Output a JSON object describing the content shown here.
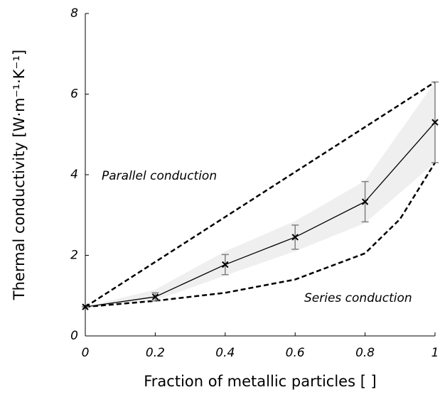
{
  "chart_data": {
    "type": "line",
    "xlabel": "Fraction of metallic particles [ ]",
    "ylabel": "Thermal conductivity [W·m⁻¹·K⁻¹]",
    "xlim": [
      0,
      1
    ],
    "ylim": [
      0,
      8
    ],
    "xticks": [
      0,
      0.2,
      0.4,
      0.6,
      0.8,
      1
    ],
    "yticks": [
      0,
      2,
      4,
      6,
      8
    ],
    "annotations": [
      "Parallel conduction",
      "Series conduction"
    ],
    "band_color": "#efefef",
    "errorbar_color": "#808080",
    "series": [
      {
        "x": [
          0,
          0.2,
          0.4,
          0.6,
          0.8,
          1
        ],
        "values": [
          0.72,
          0.97,
          1.77,
          2.45,
          3.33,
          5.3
        ],
        "errors": [
          0,
          0.1,
          0.25,
          0.3,
          0.5,
          1.0
        ],
        "band_lower": [
          0.72,
          0.88,
          1.5,
          2.1,
          2.8,
          4.3
        ],
        "band_upper": [
          0.72,
          1.15,
          2.1,
          2.85,
          3.85,
          6.3
        ],
        "color": "#000000",
        "style": "solid",
        "marker": "x"
      },
      {
        "x": [
          0,
          1
        ],
        "values": [
          0.72,
          6.3
        ],
        "color": "#000000",
        "style": "dashed"
      },
      {
        "x": [
          0,
          0.2,
          0.4,
          0.6,
          0.8,
          0.9,
          1
        ],
        "values": [
          0.72,
          0.87,
          1.07,
          1.4,
          2.05,
          2.9,
          4.3
        ],
        "color": "#000000",
        "style": "dashed"
      }
    ]
  }
}
